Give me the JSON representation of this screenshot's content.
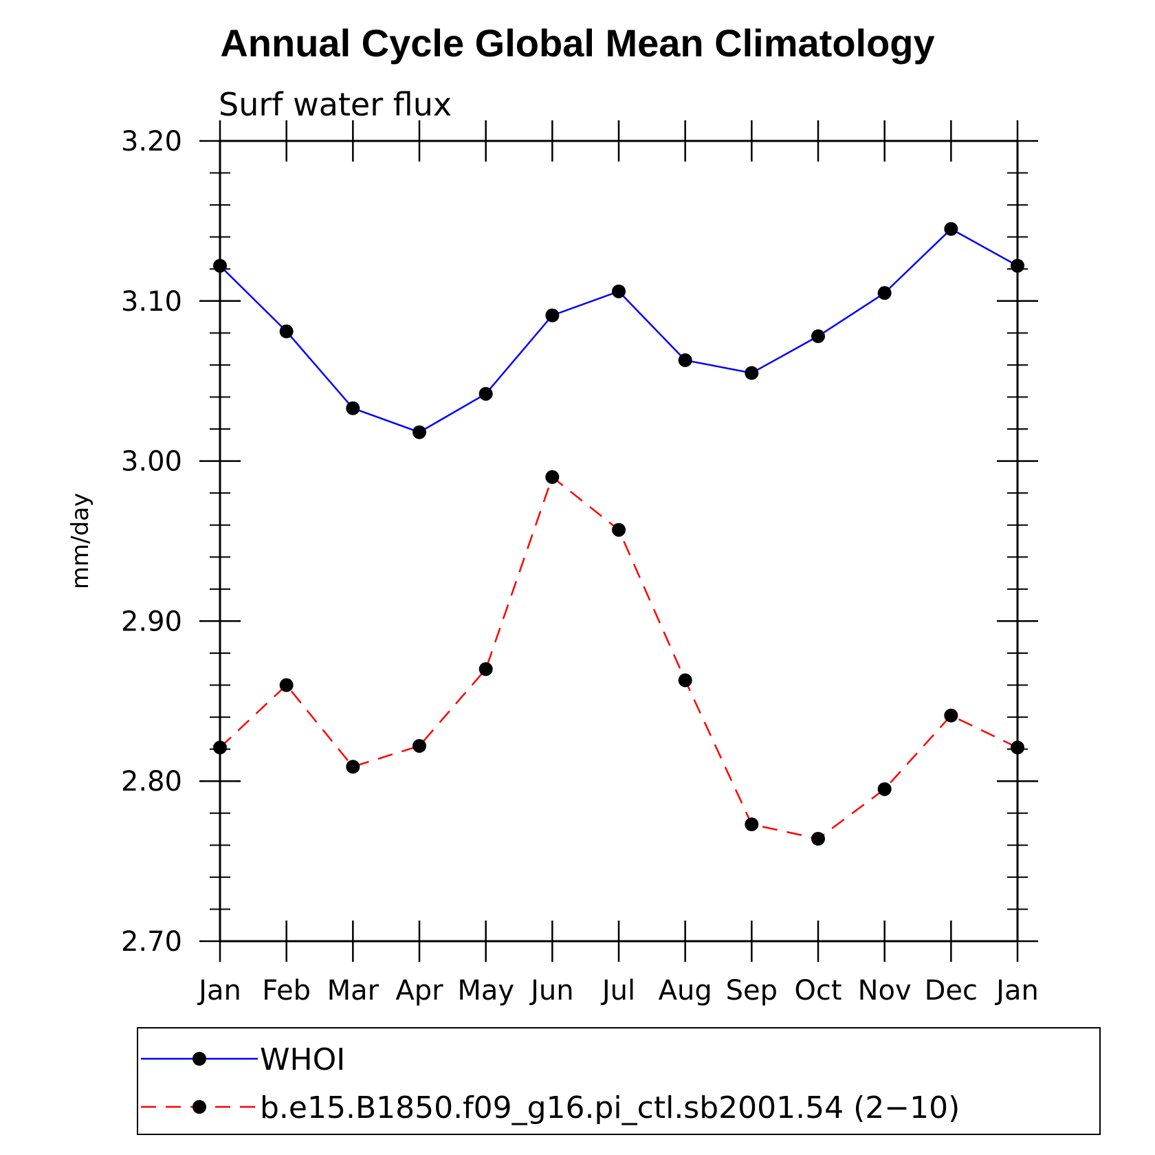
{
  "chart_data": {
    "type": "line",
    "title": "Annual Cycle Global Mean Climatology",
    "subtitle": "Surf water flux",
    "xlabel": "",
    "ylabel": "mm/day",
    "categories": [
      "Jan",
      "Feb",
      "Mar",
      "Apr",
      "May",
      "Jun",
      "Jul",
      "Aug",
      "Sep",
      "Oct",
      "Nov",
      "Dec",
      "Jan"
    ],
    "ylim": [
      2.7,
      3.2
    ],
    "yticks": [
      2.7,
      2.8,
      2.9,
      3.0,
      3.1,
      3.2
    ],
    "ytick_labels": [
      "2.70",
      "2.80",
      "2.90",
      "3.00",
      "3.10",
      "3.20"
    ],
    "grid": false,
    "legend_position": "bottom",
    "series": [
      {
        "name": "WHOI",
        "color": "#0000ff",
        "style": "solid",
        "marker": "filled-circle",
        "values": [
          3.122,
          3.081,
          3.033,
          3.018,
          3.042,
          3.091,
          3.106,
          3.063,
          3.055,
          3.078,
          3.105,
          3.145,
          3.122
        ]
      },
      {
        "name": "b.e15.B1850.f09_g16.pi_ctl.sb2001.54 (2−10)",
        "color": "#ff0000",
        "style": "dashed",
        "marker": "filled-circle",
        "values": [
          2.821,
          2.86,
          2.809,
          2.822,
          2.87,
          2.99,
          2.957,
          2.863,
          2.773,
          2.764,
          2.795,
          2.841,
          2.821
        ]
      }
    ]
  }
}
